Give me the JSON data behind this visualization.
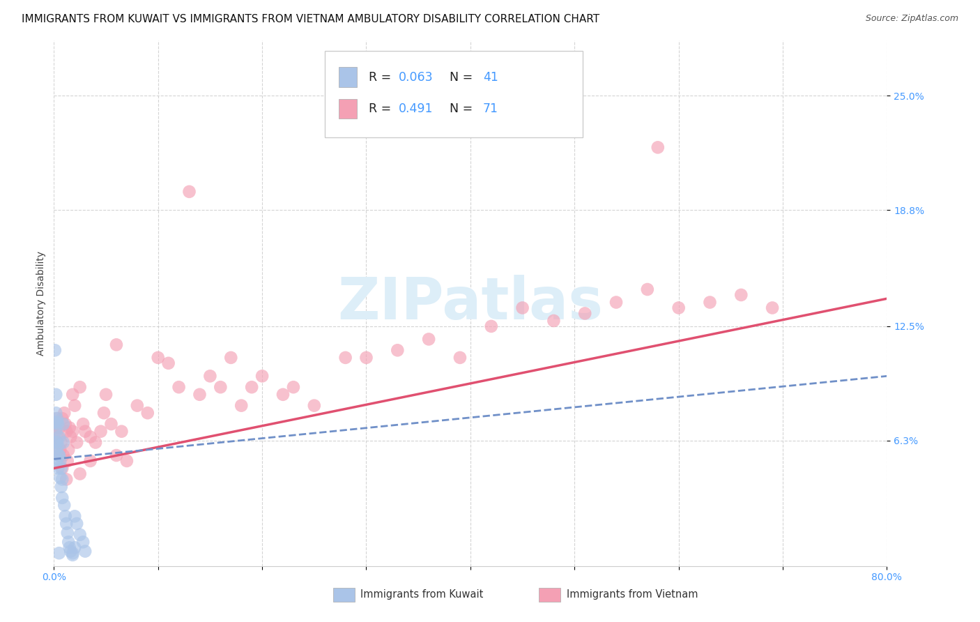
{
  "title": "IMMIGRANTS FROM KUWAIT VS IMMIGRANTS FROM VIETNAM AMBULATORY DISABILITY CORRELATION CHART",
  "source": "Source: ZipAtlas.com",
  "ylabel": "Ambulatory Disability",
  "xlim": [
    0.0,
    0.8
  ],
  "ylim": [
    -0.005,
    0.28
  ],
  "yticks": [
    0.063,
    0.125,
    0.188,
    0.25
  ],
  "ytick_labels": [
    "6.3%",
    "12.5%",
    "18.8%",
    "25.0%"
  ],
  "xticks": [
    0.0,
    0.1,
    0.2,
    0.3,
    0.4,
    0.5,
    0.6,
    0.7,
    0.8
  ],
  "xtick_labels": [
    "0.0%",
    "",
    "",
    "",
    "",
    "",
    "",
    "",
    "80.0%"
  ],
  "kuwait_color": "#aac4e8",
  "vietnam_color": "#f4a0b4",
  "kuwait_line_color": "#7090c8",
  "vietnam_line_color": "#e05070",
  "background_color": "#ffffff",
  "grid_color": "#d0d0d0",
  "watermark": "ZIPatlas",
  "watermark_color": "#ddeef8",
  "tick_color": "#4499ff",
  "title_fontsize": 11,
  "source_fontsize": 9,
  "tick_fontsize": 10,
  "ylabel_fontsize": 10,
  "scatter_size": 180,
  "scatter_alpha": 0.65,
  "kuwait_x": [
    0.001,
    0.001,
    0.002,
    0.002,
    0.002,
    0.003,
    0.003,
    0.003,
    0.004,
    0.004,
    0.004,
    0.005,
    0.005,
    0.005,
    0.006,
    0.006,
    0.007,
    0.007,
    0.008,
    0.008,
    0.009,
    0.009,
    0.01,
    0.011,
    0.012,
    0.013,
    0.014,
    0.015,
    0.016,
    0.018,
    0.02,
    0.022,
    0.025,
    0.028,
    0.03,
    0.001,
    0.002,
    0.003,
    0.018,
    0.02,
    0.005
  ],
  "kuwait_y": [
    0.073,
    0.062,
    0.078,
    0.058,
    0.068,
    0.052,
    0.062,
    0.073,
    0.048,
    0.06,
    0.072,
    0.055,
    0.065,
    0.055,
    0.043,
    0.052,
    0.038,
    0.048,
    0.032,
    0.042,
    0.062,
    0.072,
    0.028,
    0.022,
    0.018,
    0.013,
    0.008,
    0.005,
    0.003,
    0.001,
    0.022,
    0.018,
    0.012,
    0.008,
    0.003,
    0.112,
    0.088,
    0.075,
    0.002,
    0.005,
    0.002
  ],
  "vietnam_x": [
    0.001,
    0.002,
    0.003,
    0.004,
    0.005,
    0.006,
    0.007,
    0.008,
    0.009,
    0.01,
    0.011,
    0.012,
    0.013,
    0.014,
    0.015,
    0.016,
    0.018,
    0.02,
    0.022,
    0.025,
    0.028,
    0.03,
    0.035,
    0.04,
    0.045,
    0.05,
    0.055,
    0.06,
    0.065,
    0.07,
    0.08,
    0.09,
    0.1,
    0.11,
    0.12,
    0.14,
    0.15,
    0.16,
    0.17,
    0.18,
    0.19,
    0.2,
    0.22,
    0.23,
    0.25,
    0.28,
    0.3,
    0.33,
    0.36,
    0.39,
    0.42,
    0.45,
    0.48,
    0.51,
    0.54,
    0.57,
    0.6,
    0.63,
    0.66,
    0.69,
    0.003,
    0.005,
    0.008,
    0.012,
    0.018,
    0.025,
    0.035,
    0.048,
    0.06,
    0.13,
    0.58
  ],
  "vietnam_y": [
    0.068,
    0.072,
    0.075,
    0.065,
    0.07,
    0.058,
    0.062,
    0.075,
    0.055,
    0.078,
    0.072,
    0.068,
    0.052,
    0.058,
    0.07,
    0.065,
    0.088,
    0.082,
    0.062,
    0.092,
    0.072,
    0.068,
    0.065,
    0.062,
    0.068,
    0.088,
    0.072,
    0.055,
    0.068,
    0.052,
    0.082,
    0.078,
    0.108,
    0.105,
    0.092,
    0.088,
    0.098,
    0.092,
    0.108,
    0.082,
    0.092,
    0.098,
    0.088,
    0.092,
    0.082,
    0.108,
    0.108,
    0.112,
    0.118,
    0.108,
    0.125,
    0.135,
    0.128,
    0.132,
    0.138,
    0.145,
    0.135,
    0.138,
    0.142,
    0.135,
    0.062,
    0.055,
    0.048,
    0.042,
    0.068,
    0.045,
    0.052,
    0.078,
    0.115,
    0.198,
    0.222
  ],
  "vn_trendline_x": [
    0.0,
    0.8
  ],
  "vn_trendline_y": [
    0.048,
    0.14
  ],
  "kw_trendline_x": [
    0.0,
    0.8
  ],
  "kw_trendline_y": [
    0.053,
    0.098
  ]
}
